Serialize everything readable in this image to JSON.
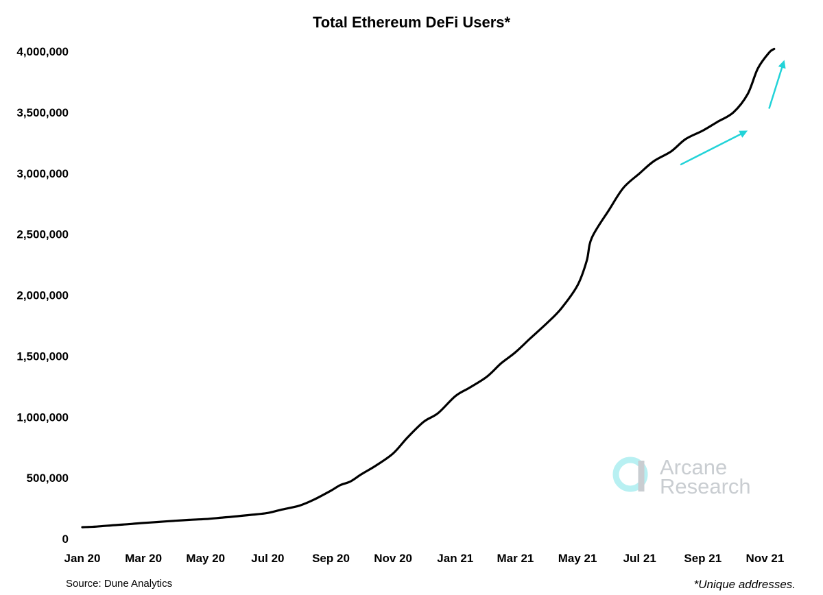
{
  "chart_data": {
    "type": "line",
    "title": "Total Ethereum DeFi Users*",
    "xlabel": "",
    "ylabel": "",
    "x_ticks": [
      "Jan 20",
      "Mar 20",
      "May 20",
      "Jul 20",
      "Sep 20",
      "Nov 20",
      "Jan 21",
      "Mar 21",
      "May 21",
      "Jul 21",
      "Sep 21",
      "Nov 21"
    ],
    "y_ticks": [
      "0",
      "500,000",
      "1,000,000",
      "1,500,000",
      "2,000,000",
      "2,500,000",
      "3,000,000",
      "3,500,000",
      "4,000,000"
    ],
    "ylim": [
      0,
      4000000
    ],
    "xlim": [
      "2020-01-01",
      "2021-12-01"
    ],
    "grid": false,
    "series": [
      {
        "color": "#000000",
        "points": [
          [
            "2020-01-01",
            95000
          ],
          [
            "2020-01-15",
            100000
          ],
          [
            "2020-02-01",
            112000
          ],
          [
            "2020-02-15",
            120000
          ],
          [
            "2020-03-01",
            130000
          ],
          [
            "2020-03-15",
            138000
          ],
          [
            "2020-04-01",
            148000
          ],
          [
            "2020-04-15",
            155000
          ],
          [
            "2020-05-01",
            162000
          ],
          [
            "2020-05-15",
            172000
          ],
          [
            "2020-06-01",
            185000
          ],
          [
            "2020-06-15",
            197000
          ],
          [
            "2020-07-01",
            212000
          ],
          [
            "2020-07-15",
            240000
          ],
          [
            "2020-08-01",
            272000
          ],
          [
            "2020-08-15",
            320000
          ],
          [
            "2020-09-01",
            395000
          ],
          [
            "2020-09-10",
            440000
          ],
          [
            "2020-09-20",
            470000
          ],
          [
            "2020-10-01",
            530000
          ],
          [
            "2020-10-15",
            600000
          ],
          [
            "2020-11-01",
            700000
          ],
          [
            "2020-11-15",
            830000
          ],
          [
            "2020-12-01",
            960000
          ],
          [
            "2020-12-15",
            1030000
          ],
          [
            "2021-01-01",
            1170000
          ],
          [
            "2021-01-15",
            1240000
          ],
          [
            "2021-02-01",
            1330000
          ],
          [
            "2021-02-15",
            1440000
          ],
          [
            "2021-03-01",
            1530000
          ],
          [
            "2021-03-15",
            1640000
          ],
          [
            "2021-04-01",
            1770000
          ],
          [
            "2021-04-15",
            1890000
          ],
          [
            "2021-05-01",
            2080000
          ],
          [
            "2021-05-10",
            2280000
          ],
          [
            "2021-05-15",
            2470000
          ],
          [
            "2021-06-01",
            2700000
          ],
          [
            "2021-06-15",
            2880000
          ],
          [
            "2021-07-01",
            3000000
          ],
          [
            "2021-07-15",
            3100000
          ],
          [
            "2021-08-01",
            3180000
          ],
          [
            "2021-08-15",
            3280000
          ],
          [
            "2021-09-01",
            3350000
          ],
          [
            "2021-09-15",
            3420000
          ],
          [
            "2021-10-01",
            3500000
          ],
          [
            "2021-10-15",
            3650000
          ],
          [
            "2021-10-25",
            3860000
          ],
          [
            "2021-11-05",
            3990000
          ],
          [
            "2021-11-10",
            4020000
          ]
        ]
      }
    ],
    "annotations": [
      {
        "type": "arrow",
        "color": "#22d3d8",
        "from": [
          "2021-08-10",
          3070000
        ],
        "to": [
          "2021-10-15",
          3350000
        ]
      },
      {
        "type": "arrow",
        "color": "#22d3d8",
        "from": [
          "2021-11-05",
          3530000
        ],
        "to": [
          "2021-11-20",
          3930000
        ]
      }
    ]
  },
  "footer": {
    "source": "Source: Dune Analytics",
    "note": "*Unique addresses."
  },
  "watermark": {
    "line1": "Arcane",
    "line2": "Research",
    "icon": "arcane-logo-icon"
  },
  "colors": {
    "line": "#000000",
    "accent": "#22d3d8",
    "watermark_text": "#c9cdd1",
    "watermark_icon": "#b8f0f2"
  }
}
